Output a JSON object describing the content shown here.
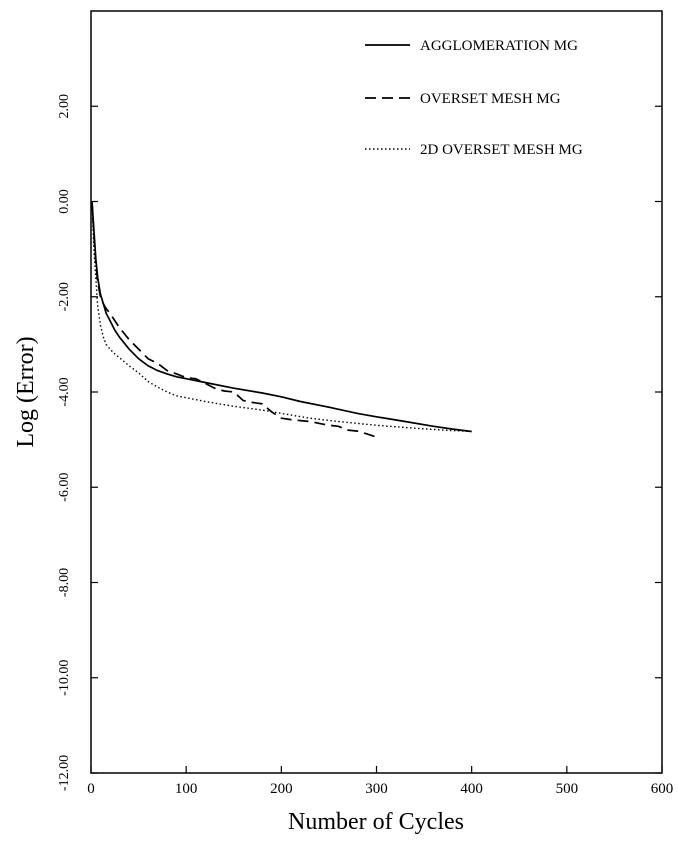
{
  "chart_data": {
    "type": "line",
    "title": "",
    "xlabel": "Number of Cycles",
    "ylabel": "Log (Error)",
    "xlim": [
      0,
      600
    ],
    "ylim": [
      -12,
      4
    ],
    "x_ticks": [
      {
        "value": 0,
        "label": "0"
      },
      {
        "value": 100,
        "label": "100"
      },
      {
        "value": 200,
        "label": "200"
      },
      {
        "value": 300,
        "label": "300"
      },
      {
        "value": 400,
        "label": "400"
      },
      {
        "value": 500,
        "label": "500"
      },
      {
        "value": 600,
        "label": "600"
      }
    ],
    "y_ticks": [
      {
        "value": 2,
        "label": "2.00"
      },
      {
        "value": 0,
        "label": "0.00"
      },
      {
        "value": -2,
        "label": "-2.00"
      },
      {
        "value": -4,
        "label": "-4.00"
      },
      {
        "value": -6,
        "label": "-6.00"
      },
      {
        "value": -8,
        "label": "-8.00"
      },
      {
        "value": -10,
        "label": "-10.00"
      },
      {
        "value": -12,
        "label": "-12.00"
      }
    ],
    "grid": false,
    "legend_position": "top-right",
    "series": [
      {
        "name": "AGGLOMERATION MG",
        "style": "solid",
        "x": [
          1,
          3,
          5,
          7,
          10,
          13,
          16,
          20,
          25,
          30,
          40,
          50,
          60,
          70,
          80,
          90,
          100,
          120,
          150,
          180,
          200,
          220,
          250,
          280,
          300,
          330,
          360,
          380,
          400
        ],
        "y": [
          0.0,
          -0.6,
          -1.2,
          -1.6,
          -1.95,
          -2.15,
          -2.35,
          -2.5,
          -2.7,
          -2.85,
          -3.1,
          -3.3,
          -3.45,
          -3.55,
          -3.62,
          -3.68,
          -3.72,
          -3.8,
          -3.92,
          -4.02,
          -4.1,
          -4.2,
          -4.32,
          -4.45,
          -4.52,
          -4.62,
          -4.72,
          -4.78,
          -4.83
        ]
      },
      {
        "name": "OVERSET MESH MG",
        "style": "dashed",
        "x": [
          1,
          3,
          5,
          7,
          10,
          13,
          16,
          20,
          25,
          30,
          40,
          50,
          60,
          70,
          80,
          90,
          100,
          110,
          120,
          130,
          140,
          150,
          160,
          170,
          180,
          190,
          200,
          210,
          220,
          230,
          240,
          250,
          260,
          270,
          280,
          290,
          300
        ],
        "y": [
          0.0,
          -0.7,
          -1.3,
          -1.7,
          -2.0,
          -2.15,
          -2.25,
          -2.35,
          -2.5,
          -2.65,
          -2.9,
          -3.1,
          -3.3,
          -3.4,
          -3.55,
          -3.62,
          -3.7,
          -3.72,
          -3.82,
          -3.92,
          -3.98,
          -4.0,
          -4.18,
          -4.22,
          -4.25,
          -4.42,
          -4.55,
          -4.58,
          -4.6,
          -4.62,
          -4.66,
          -4.7,
          -4.72,
          -4.8,
          -4.82,
          -4.88,
          -4.95
        ]
      },
      {
        "name": "2D OVERSET MESH MG",
        "style": "dotted",
        "x": [
          1,
          3,
          5,
          7,
          10,
          13,
          16,
          20,
          25,
          30,
          40,
          50,
          60,
          70,
          80,
          90,
          100,
          120,
          150,
          180,
          200,
          230,
          260,
          300,
          340,
          370,
          400
        ],
        "y": [
          0.0,
          -1.0,
          -1.6,
          -2.2,
          -2.6,
          -2.85,
          -3.0,
          -3.1,
          -3.2,
          -3.28,
          -3.45,
          -3.6,
          -3.78,
          -3.9,
          -4.0,
          -4.08,
          -4.12,
          -4.2,
          -4.3,
          -4.38,
          -4.45,
          -4.55,
          -4.62,
          -4.7,
          -4.76,
          -4.8,
          -4.83
        ]
      }
    ]
  }
}
